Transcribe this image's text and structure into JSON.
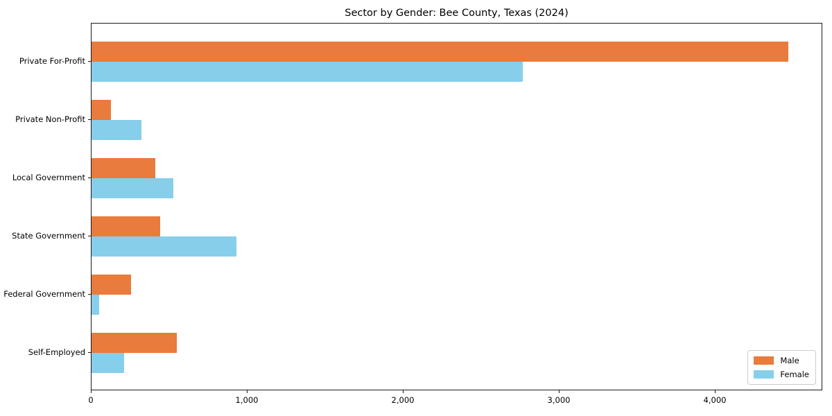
{
  "chart_data": {
    "type": "bar",
    "orientation": "horizontal",
    "title": "Sector by Gender: Bee County, Texas (2024)",
    "categories": [
      "Private For-Profit",
      "Private Non-Profit",
      "Local Government",
      "State Government",
      "Federal Government",
      "Self-Employed"
    ],
    "series": [
      {
        "name": "Male",
        "color": "#E97B3C",
        "values": [
          4465,
          125,
          410,
          440,
          255,
          545
        ]
      },
      {
        "name": "Female",
        "color": "#87CEEB",
        "values": [
          2765,
          320,
          525,
          930,
          50,
          210
        ]
      }
    ],
    "xlabel": "",
    "ylabel": "",
    "xlim": [
      0,
      4689
    ],
    "xticks": [
      {
        "value": 0,
        "label": "0"
      },
      {
        "value": 1000,
        "label": "1,000"
      },
      {
        "value": 2000,
        "label": "2,000"
      },
      {
        "value": 3000,
        "label": "3,000"
      },
      {
        "value": 4000,
        "label": "4,000"
      }
    ],
    "grid": false,
    "legend_position": "lower right",
    "axis_color": "#1a1a1a",
    "background_color": "#ffffff"
  }
}
